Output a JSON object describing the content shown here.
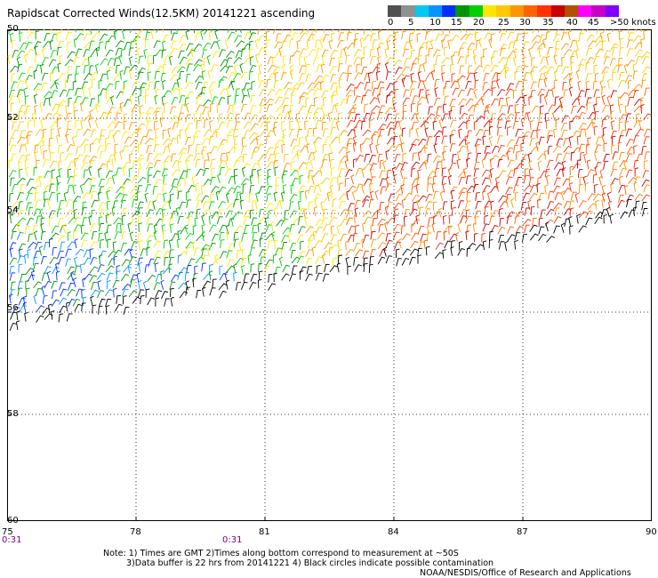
{
  "title": "Rapidscat Corrected Winds(12.5KM) 20141221 ascending",
  "legend": {
    "colors": [
      "#505050",
      "#909090",
      "#00c8f0",
      "#0096ff",
      "#0030ff",
      "#009600",
      "#00d000",
      "#ffe600",
      "#ffc800",
      "#ff9600",
      "#ff6400",
      "#ff3200",
      "#c80000",
      "#b45000",
      "#ff00ff",
      "#c800c8",
      "#8000ff"
    ],
    "labels": [
      "0",
      "5",
      "10",
      "15",
      "20",
      "25",
      "30",
      "35",
      "40",
      "45",
      ">50 knots"
    ]
  },
  "axes": {
    "y_ticks": [
      "50",
      "52",
      "54",
      "56",
      "58",
      "60"
    ],
    "x_ticks": [
      "75",
      "78",
      "81",
      "84",
      "87",
      "90"
    ]
  },
  "time_labels": [
    "0:31",
    "0:31"
  ],
  "notes": [
    "Note: 1) Times are GMT 2)Times along bottom correspond to measurement at ~50S",
    "3)Data buffer is 22 hrs from 20141221 4) Black circles indicate possible contamination",
    "NOAA/NESDIS/Office of Research and Applications"
  ]
}
